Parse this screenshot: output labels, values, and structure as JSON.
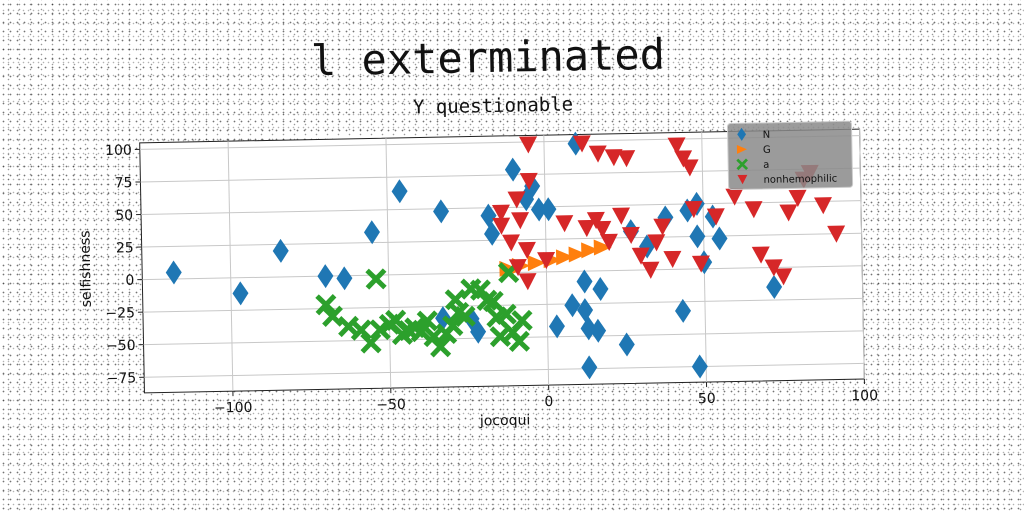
{
  "chart_data": {
    "type": "scatter",
    "title": "l exterminated",
    "subtitle": "Y questionable",
    "xlabel": "jocoqui",
    "ylabel": "selfishness",
    "xlim": [
      -128,
      100
    ],
    "ylim": [
      -87,
      105
    ],
    "xticks": [
      -100,
      -50,
      0,
      50,
      100
    ],
    "yticks": [
      100,
      75,
      50,
      25,
      0,
      -25,
      -50,
      -75
    ],
    "grid": true,
    "legend_position": "top-right",
    "series": [
      {
        "name": "N",
        "marker": "diamond",
        "color": "#1f77b4",
        "points": [
          [
            -118,
            5
          ],
          [
            -97,
            -12
          ],
          [
            -84,
            20
          ],
          [
            -70,
            0
          ],
          [
            -64,
            -2
          ],
          [
            -55,
            33
          ],
          [
            -46,
            64
          ],
          [
            -33,
            48
          ],
          [
            -33,
            -34
          ],
          [
            -24,
            -35
          ],
          [
            -22,
            -45
          ],
          [
            -18,
            44
          ],
          [
            -17,
            30
          ],
          [
            -10,
            79
          ],
          [
            -6,
            56
          ],
          [
            -4,
            66
          ],
          [
            -2,
            48
          ],
          [
            1,
            48
          ],
          [
            3,
            -42
          ],
          [
            8,
            -26
          ],
          [
            10,
            98
          ],
          [
            12,
            -30
          ],
          [
            13,
            -44
          ],
          [
            13,
            -74
          ],
          [
            16,
            -46
          ],
          [
            12,
            -8
          ],
          [
            17,
            -14
          ],
          [
            25,
            -57
          ],
          [
            27,
            30
          ],
          [
            32,
            18
          ],
          [
            38,
            40
          ],
          [
            43,
            -32
          ],
          [
            45,
            45
          ],
          [
            48,
            50
          ],
          [
            48,
            25
          ],
          [
            50,
            5
          ],
          [
            53,
            40
          ],
          [
            55,
            23
          ],
          [
            48,
            -75
          ],
          [
            72,
            -15
          ]
        ]
      },
      {
        "name": "G",
        "marker": "triangle-right",
        "color": "#ff7f0e",
        "points": [
          [
            -12,
            3
          ],
          [
            -8,
            5
          ],
          [
            -3,
            7
          ],
          [
            2,
            9
          ],
          [
            6,
            11
          ],
          [
            10,
            13
          ],
          [
            14,
            16
          ],
          [
            18,
            18
          ]
        ]
      },
      {
        "name": "a",
        "marker": "x",
        "color": "#2ca02c",
        "points": [
          [
            -70,
            -22
          ],
          [
            -68,
            -31
          ],
          [
            -63,
            -39
          ],
          [
            -59,
            -42
          ],
          [
            -56,
            -52
          ],
          [
            -53,
            -42
          ],
          [
            -50,
            -38
          ],
          [
            -48,
            -35
          ],
          [
            -46,
            -46
          ],
          [
            -44,
            -43
          ],
          [
            -42,
            -41
          ],
          [
            -40,
            -44
          ],
          [
            -38,
            -36
          ],
          [
            -36,
            -48
          ],
          [
            -34,
            -56
          ],
          [
            -32,
            -46
          ],
          [
            -30,
            -40
          ],
          [
            -28,
            -30
          ],
          [
            -26,
            -33
          ],
          [
            -24,
            -12
          ],
          [
            -21,
            -13
          ],
          [
            -19,
            -21
          ],
          [
            -17,
            -22
          ],
          [
            -15,
            -49
          ],
          [
            -13,
            -32
          ],
          [
            -11,
            -46
          ],
          [
            -9,
            -53
          ],
          [
            -54,
            -3
          ],
          [
            -29,
            -20
          ],
          [
            -16,
            -34
          ],
          [
            -12,
            0
          ],
          [
            -8,
            -37
          ]
        ]
      },
      {
        "name": "nonhemophilic",
        "marker": "triangle-down",
        "color": "#d62728",
        "points": [
          [
            -5,
            98
          ],
          [
            12,
            98
          ],
          [
            17,
            90
          ],
          [
            22,
            87
          ],
          [
            26,
            86
          ],
          [
            -5,
            70
          ],
          [
            -9,
            56
          ],
          [
            -14,
            46
          ],
          [
            -14,
            36
          ],
          [
            -8,
            40
          ],
          [
            -11,
            23
          ],
          [
            -6,
            17
          ],
          [
            -9,
            4
          ],
          [
            -6,
            -7
          ],
          [
            0,
            9
          ],
          [
            6,
            37
          ],
          [
            13,
            33
          ],
          [
            16,
            39
          ],
          [
            18,
            32
          ],
          [
            20,
            22
          ],
          [
            24,
            42
          ],
          [
            27,
            27
          ],
          [
            30,
            11
          ],
          [
            33,
            0
          ],
          [
            35,
            21
          ],
          [
            37,
            33
          ],
          [
            40,
            8
          ],
          [
            42,
            95
          ],
          [
            44,
            85
          ],
          [
            46,
            78
          ],
          [
            47,
            46
          ],
          [
            49,
            4
          ],
          [
            54,
            40
          ],
          [
            60,
            55
          ],
          [
            66,
            45
          ],
          [
            68,
            10
          ],
          [
            72,
            0
          ],
          [
            75,
            -7
          ],
          [
            77,
            42
          ],
          [
            80,
            53
          ],
          [
            82,
            67
          ],
          [
            84,
            72
          ],
          [
            88,
            47
          ],
          [
            92,
            25
          ]
        ]
      }
    ]
  }
}
